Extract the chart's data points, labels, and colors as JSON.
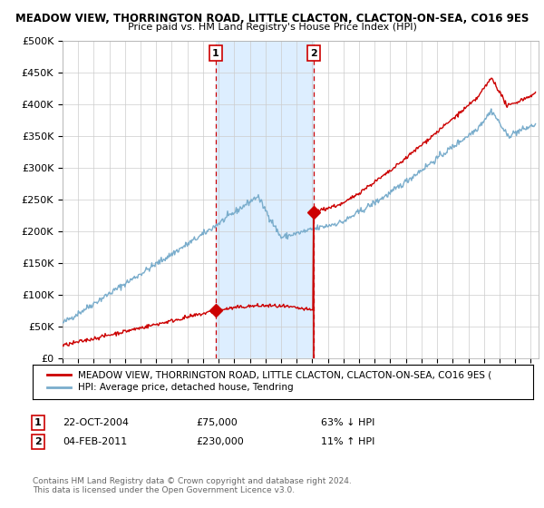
{
  "title": "MEADOW VIEW, THORRINGTON ROAD, LITTLE CLACTON, CLACTON-ON-SEA, CO16 9ES",
  "subtitle": "Price paid vs. HM Land Registry's House Price Index (HPI)",
  "ylabel_ticks": [
    "£0",
    "£50K",
    "£100K",
    "£150K",
    "£200K",
    "£250K",
    "£300K",
    "£350K",
    "£400K",
    "£450K",
    "£500K"
  ],
  "ytick_values": [
    0,
    50000,
    100000,
    150000,
    200000,
    250000,
    300000,
    350000,
    400000,
    450000,
    500000
  ],
  "ylim": [
    0,
    500000
  ],
  "xlim_start": 1995.0,
  "xlim_end": 2025.5,
  "marker1_x": 2004.81,
  "marker1_y": 75000,
  "marker1_label": "22-OCT-2004",
  "marker1_price": "£75,000",
  "marker1_pct": "63% ↓ HPI",
  "marker2_x": 2011.09,
  "marker2_y": 230000,
  "marker2_label": "04-FEB-2011",
  "marker2_price": "£230,000",
  "marker2_pct": "11% ↑ HPI",
  "red_color": "#cc0000",
  "blue_color": "#7aadcc",
  "shade_color": "#ddeeff",
  "legend_line1": "MEADOW VIEW, THORRINGTON ROAD, LITTLE CLACTON, CLACTON-ON-SEA, CO16 9ES (",
  "legend_line2": "HPI: Average price, detached house, Tendring",
  "footer1": "Contains HM Land Registry data © Crown copyright and database right 2024.",
  "footer2": "This data is licensed under the Open Government Licence v3.0.",
  "background_color": "#ffffff",
  "xtick_years": [
    1995,
    1996,
    1997,
    1998,
    1999,
    2000,
    2001,
    2002,
    2003,
    2004,
    2005,
    2006,
    2007,
    2008,
    2009,
    2010,
    2011,
    2012,
    2013,
    2014,
    2015,
    2016,
    2017,
    2018,
    2019,
    2020,
    2021,
    2022,
    2023,
    2024,
    2025
  ]
}
